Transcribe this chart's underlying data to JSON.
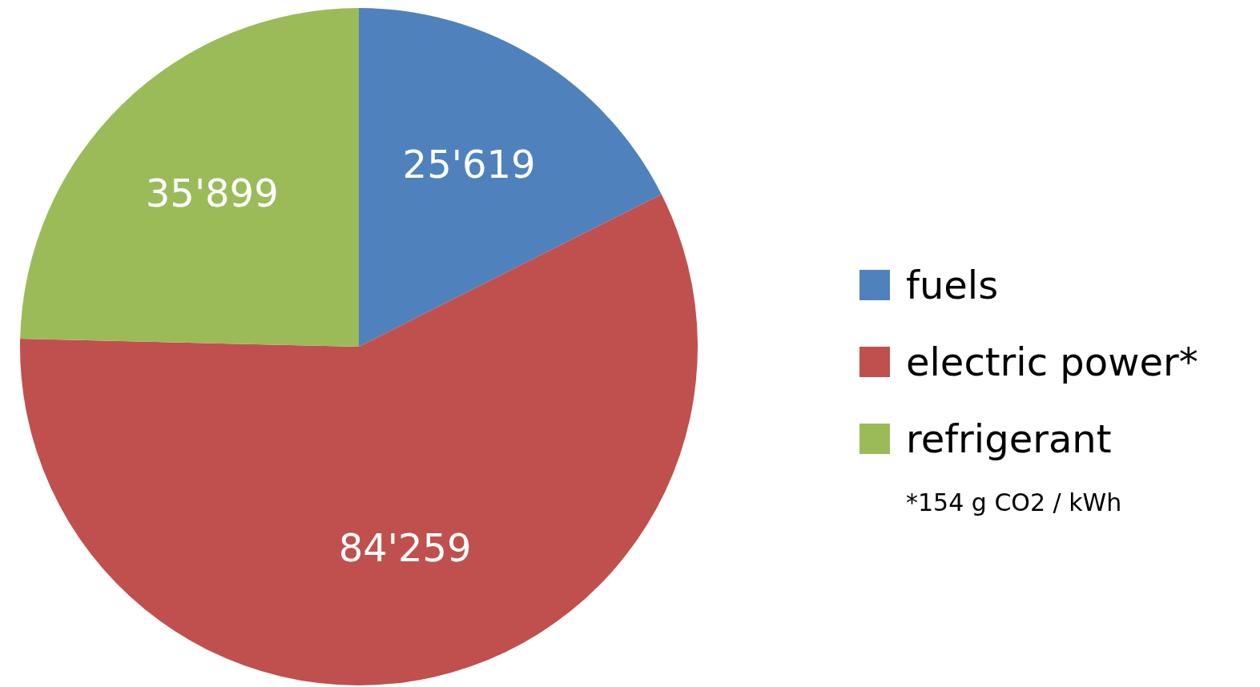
{
  "chart_data": {
    "type": "pie",
    "categories": [
      "fuels",
      "electric power*",
      "refrigerant"
    ],
    "values": [
      25619,
      84259,
      35899
    ],
    "colors": [
      "#4f81bd",
      "#c0504d",
      "#9bbb59"
    ],
    "value_labels": [
      "25'619",
      "84'259",
      "35'899"
    ],
    "legend": "right",
    "annotations": [
      "*154 g CO2 / kWh"
    ]
  }
}
